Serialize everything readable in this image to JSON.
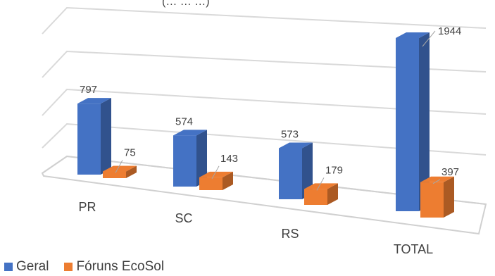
{
  "chart_data": {
    "type": "bar",
    "title": "(… … …)",
    "categories": [
      "PR",
      "SC",
      "RS",
      "TOTAL"
    ],
    "series": [
      {
        "name": "Geral",
        "values": [
          797,
          574,
          573,
          1944
        ],
        "color": "#4472C4"
      },
      {
        "name": "Fóruns EcoSol",
        "values": [
          75,
          143,
          179,
          397
        ],
        "color": "#ED7D31"
      }
    ],
    "ylim": [
      0,
      2200
    ],
    "grid": true,
    "legend_position": "bottom-left",
    "style": "3d-perspective-clustered-column"
  }
}
